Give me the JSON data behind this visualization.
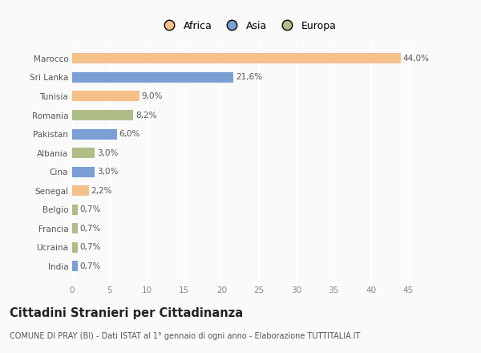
{
  "categories": [
    "Marocco",
    "Sri Lanka",
    "Tunisia",
    "Romania",
    "Pakistan",
    "Albania",
    "Cina",
    "Senegal",
    "Belgio",
    "Francia",
    "Ucraina",
    "India"
  ],
  "values": [
    44.0,
    21.6,
    9.0,
    8.2,
    6.0,
    3.0,
    3.0,
    2.2,
    0.7,
    0.7,
    0.7,
    0.7
  ],
  "labels": [
    "44,0%",
    "21,6%",
    "9,0%",
    "8,2%",
    "6,0%",
    "3,0%",
    "3,0%",
    "2,2%",
    "0,7%",
    "0,7%",
    "0,7%",
    "0,7%"
  ],
  "colors": [
    "#F5C08A",
    "#7B9FD4",
    "#F5C08A",
    "#AFBD88",
    "#7B9FD4",
    "#AFBD88",
    "#7B9FD4",
    "#F5C08A",
    "#AFBD88",
    "#AFBD88",
    "#AFBD88",
    "#7B9FD4"
  ],
  "legend_labels": [
    "Africa",
    "Asia",
    "Europa"
  ],
  "legend_colors": [
    "#F5C08A",
    "#7B9FD4",
    "#AFBD88"
  ],
  "xlim": [
    0,
    47
  ],
  "xticks": [
    0,
    5,
    10,
    15,
    20,
    25,
    30,
    35,
    40,
    45
  ],
  "title": "Cittadini Stranieri per Cittadinanza",
  "subtitle": "COMUNE DI PRAY (BI) - Dati ISTAT al 1° gennaio di ogni anno - Elaborazione TUTTITALIA.IT",
  "background_color": "#FAFAFA",
  "grid_color": "#FFFFFF",
  "bar_height": 0.55,
  "label_fontsize": 7.5,
  "tick_fontsize": 7.5,
  "title_fontsize": 10.5,
  "subtitle_fontsize": 7
}
